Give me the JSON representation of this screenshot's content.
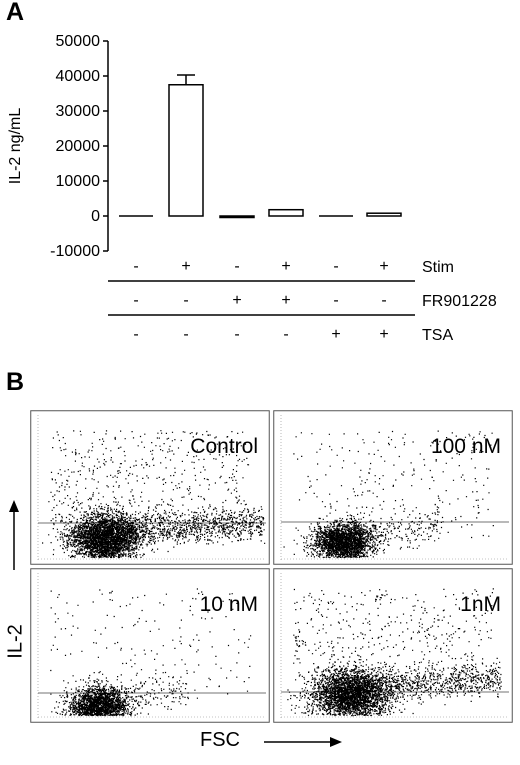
{
  "panel_a": {
    "letter": "A",
    "chart_data": {
      "type": "bar",
      "ylabel": "IL-2 ng/mL",
      "ylim": [
        -10000,
        50000
      ],
      "yticks": [
        -10000,
        0,
        10000,
        20000,
        30000,
        40000,
        50000
      ],
      "ytick_labels": [
        "-10000",
        "0",
        "10000",
        "20000",
        "30000",
        "40000",
        "50000"
      ],
      "values": [
        0,
        37500,
        -300,
        1800,
        0,
        800
      ],
      "errors": [
        0,
        2800,
        0,
        0,
        0,
        0
      ],
      "conditions": [
        {
          "name": "Stim",
          "values": [
            "-",
            "+",
            "-",
            "+",
            "-",
            "+"
          ]
        },
        {
          "name": "FR901228",
          "values": [
            "-",
            "-",
            "+",
            "+",
            "-",
            "-"
          ]
        },
        {
          "name": "TSA",
          "values": [
            "-",
            "-",
            "-",
            "-",
            "+",
            "+"
          ]
        }
      ]
    }
  },
  "panel_b": {
    "letter": "B",
    "y_axis_label": "IL-2",
    "x_axis_label": "FSC",
    "panels": [
      {
        "title": "Control",
        "pos": "top-left"
      },
      {
        "title": "100 nM",
        "pos": "top-right"
      },
      {
        "title": "10 nM",
        "pos": "bottom-left"
      },
      {
        "title": "1nM",
        "pos": "bottom-right"
      }
    ]
  }
}
